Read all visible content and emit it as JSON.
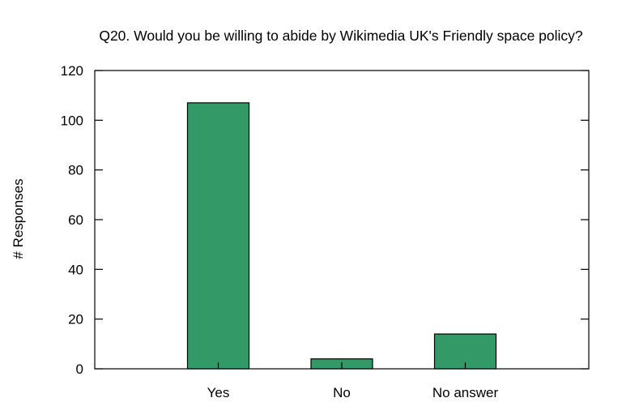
{
  "chart_data": {
    "type": "bar",
    "title": "Q20. Would you be willing to abide by Wikimedia UK's Friendly space policy?",
    "xlabel": "",
    "ylabel": "# Responses",
    "categories": [
      "Yes",
      "No",
      "No answer"
    ],
    "values": [
      107,
      4,
      14
    ],
    "ylim": [
      0,
      120
    ],
    "yticks": [
      "0",
      "20",
      "40",
      "60",
      "80",
      "100",
      "120"
    ],
    "bar_color": "#339966",
    "grid": false,
    "legend": "none"
  }
}
